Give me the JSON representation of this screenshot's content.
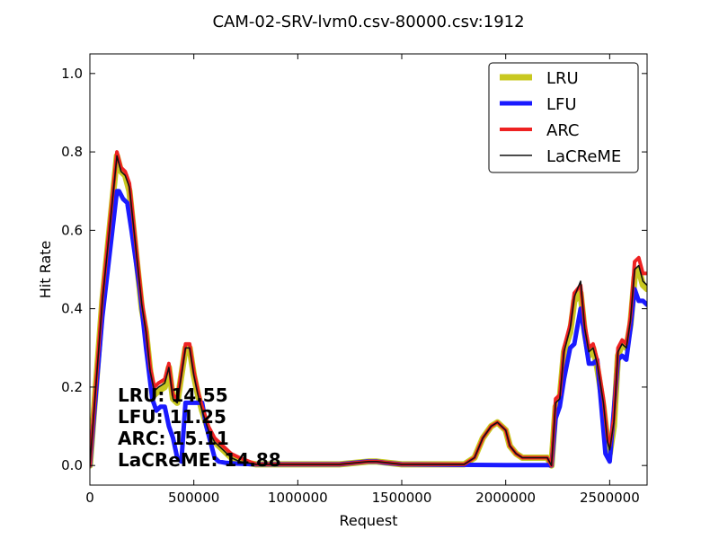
{
  "chart_data": {
    "type": "line",
    "title": "CAM-02-SRV-lvm0.csv-80000.csv:1912",
    "xlabel": "Request",
    "ylabel": "Hit Rate",
    "xlim": [
      0,
      2680000
    ],
    "ylim": [
      -0.05,
      1.05
    ],
    "xticks": [
      0,
      500000,
      1000000,
      1500000,
      2000000,
      2500000
    ],
    "xtick_labels": [
      "0",
      "500000",
      "1000000",
      "1500000",
      "2000000",
      "2500000"
    ],
    "yticks": [
      0.0,
      0.2,
      0.4,
      0.6,
      0.8,
      1.0
    ],
    "ytick_labels": [
      "0.0",
      "0.2",
      "0.4",
      "0.6",
      "0.8",
      "1.0"
    ],
    "grid": false,
    "legend_position": "top-right",
    "series": [
      {
        "name": "LRU",
        "color": "#c8c820",
        "width": 7,
        "x": [
          0,
          60000,
          130000,
          150000,
          170000,
          190000,
          220000,
          250000,
          270000,
          290000,
          310000,
          330000,
          360000,
          380000,
          400000,
          420000,
          440000,
          460000,
          480000,
          500000,
          520000,
          540000,
          570000,
          600000,
          640000,
          680000,
          720000,
          800000,
          1000000,
          1200000,
          1340000,
          1380000,
          1500000,
          1800000,
          1850000,
          1890000,
          1930000,
          1960000,
          2000000,
          2020000,
          2050000,
          2080000,
          2100000,
          2200000,
          2220000,
          2240000,
          2260000,
          2280000,
          2310000,
          2330000,
          2360000,
          2380000,
          2400000,
          2420000,
          2440000,
          2470000,
          2490000,
          2500000,
          2520000,
          2540000,
          2560000,
          2580000,
          2600000,
          2620000,
          2640000,
          2660000,
          2680000
        ],
        "values": [
          0.0,
          0.42,
          0.79,
          0.75,
          0.74,
          0.7,
          0.55,
          0.4,
          0.34,
          0.24,
          0.18,
          0.19,
          0.2,
          0.25,
          0.17,
          0.16,
          0.23,
          0.3,
          0.3,
          0.23,
          0.18,
          0.14,
          0.09,
          0.06,
          0.04,
          0.02,
          0.01,
          0.003,
          0.003,
          0.003,
          0.01,
          0.01,
          0.003,
          0.003,
          0.02,
          0.07,
          0.1,
          0.11,
          0.09,
          0.05,
          0.03,
          0.02,
          0.02,
          0.02,
          0.0,
          0.15,
          0.17,
          0.29,
          0.34,
          0.42,
          0.44,
          0.34,
          0.28,
          0.3,
          0.25,
          0.15,
          0.06,
          0.03,
          0.1,
          0.28,
          0.31,
          0.3,
          0.36,
          0.48,
          0.5,
          0.46,
          0.45
        ]
      },
      {
        "name": "LFU",
        "color": "#1a1aff",
        "width": 5,
        "x": [
          0,
          60000,
          130000,
          140000,
          160000,
          180000,
          200000,
          240000,
          270000,
          300000,
          320000,
          340000,
          360000,
          380000,
          400000,
          420000,
          440000,
          460000,
          480000,
          500000,
          520000,
          540000,
          560000,
          580000,
          600000,
          620000,
          650000,
          700000,
          800000,
          1000000,
          1200000,
          1330000,
          1380000,
          1420000,
          1500000,
          2000000,
          2200000,
          2220000,
          2240000,
          2260000,
          2280000,
          2310000,
          2330000,
          2360000,
          2380000,
          2400000,
          2420000,
          2440000,
          2460000,
          2480000,
          2500000,
          2520000,
          2540000,
          2560000,
          2580000,
          2600000,
          2620000,
          2640000,
          2660000,
          2680000
        ],
        "values": [
          0.0,
          0.38,
          0.7,
          0.7,
          0.68,
          0.67,
          0.6,
          0.45,
          0.3,
          0.17,
          0.14,
          0.15,
          0.15,
          0.1,
          0.07,
          0.02,
          0.01,
          0.16,
          0.16,
          0.16,
          0.16,
          0.16,
          0.1,
          0.06,
          0.02,
          0.01,
          0.007,
          0.005,
          0.003,
          0.003,
          0.003,
          0.01,
          0.01,
          0.007,
          0.003,
          0.001,
          0.001,
          0.0,
          0.12,
          0.15,
          0.22,
          0.3,
          0.31,
          0.4,
          0.33,
          0.26,
          0.26,
          0.27,
          0.15,
          0.03,
          0.01,
          0.14,
          0.27,
          0.28,
          0.27,
          0.35,
          0.45,
          0.42,
          0.42,
          0.41
        ]
      },
      {
        "name": "ARC",
        "color": "#ee2222",
        "width": 4,
        "x": [
          0,
          60000,
          130000,
          150000,
          170000,
          190000,
          220000,
          250000,
          270000,
          290000,
          310000,
          330000,
          360000,
          380000,
          400000,
          420000,
          440000,
          460000,
          480000,
          500000,
          520000,
          540000,
          570000,
          600000,
          640000,
          680000,
          720000,
          800000,
          1000000,
          1200000,
          1340000,
          1380000,
          1500000,
          1800000,
          1850000,
          1890000,
          1930000,
          1960000,
          2000000,
          2020000,
          2050000,
          2080000,
          2100000,
          2200000,
          2220000,
          2240000,
          2260000,
          2280000,
          2310000,
          2330000,
          2360000,
          2380000,
          2400000,
          2420000,
          2440000,
          2470000,
          2490000,
          2500000,
          2520000,
          2540000,
          2560000,
          2580000,
          2600000,
          2620000,
          2640000,
          2660000,
          2680000
        ],
        "values": [
          0.0,
          0.43,
          0.8,
          0.76,
          0.75,
          0.72,
          0.57,
          0.42,
          0.35,
          0.25,
          0.2,
          0.21,
          0.22,
          0.26,
          0.18,
          0.17,
          0.24,
          0.31,
          0.31,
          0.24,
          0.19,
          0.15,
          0.1,
          0.07,
          0.05,
          0.03,
          0.02,
          0.003,
          0.003,
          0.003,
          0.01,
          0.01,
          0.003,
          0.003,
          0.02,
          0.07,
          0.1,
          0.11,
          0.09,
          0.05,
          0.03,
          0.02,
          0.02,
          0.02,
          0.0,
          0.17,
          0.18,
          0.3,
          0.36,
          0.44,
          0.46,
          0.36,
          0.3,
          0.31,
          0.27,
          0.17,
          0.07,
          0.05,
          0.12,
          0.3,
          0.32,
          0.31,
          0.38,
          0.52,
          0.53,
          0.49,
          0.49
        ]
      },
      {
        "name": "LaCReME",
        "color": "#111111",
        "width": 1.6,
        "x": [
          0,
          60000,
          130000,
          150000,
          170000,
          190000,
          220000,
          250000,
          270000,
          290000,
          310000,
          330000,
          360000,
          380000,
          400000,
          420000,
          440000,
          460000,
          480000,
          500000,
          520000,
          540000,
          570000,
          600000,
          640000,
          680000,
          720000,
          800000,
          1000000,
          1200000,
          1340000,
          1380000,
          1500000,
          1800000,
          1850000,
          1890000,
          1930000,
          1960000,
          2000000,
          2020000,
          2050000,
          2080000,
          2100000,
          2200000,
          2220000,
          2240000,
          2260000,
          2280000,
          2310000,
          2330000,
          2360000,
          2380000,
          2400000,
          2420000,
          2440000,
          2470000,
          2490000,
          2500000,
          2520000,
          2540000,
          2560000,
          2580000,
          2600000,
          2620000,
          2640000,
          2660000,
          2680000
        ],
        "values": [
          0.0,
          0.42,
          0.79,
          0.75,
          0.74,
          0.71,
          0.56,
          0.41,
          0.34,
          0.24,
          0.19,
          0.2,
          0.21,
          0.25,
          0.17,
          0.16,
          0.23,
          0.3,
          0.3,
          0.23,
          0.18,
          0.14,
          0.09,
          0.06,
          0.04,
          0.02,
          0.01,
          0.003,
          0.003,
          0.003,
          0.01,
          0.01,
          0.003,
          0.003,
          0.02,
          0.07,
          0.1,
          0.11,
          0.09,
          0.05,
          0.03,
          0.02,
          0.02,
          0.02,
          0.0,
          0.16,
          0.17,
          0.29,
          0.35,
          0.43,
          0.47,
          0.35,
          0.29,
          0.3,
          0.26,
          0.16,
          0.06,
          0.04,
          0.11,
          0.29,
          0.31,
          0.3,
          0.37,
          0.5,
          0.51,
          0.47,
          0.46
        ]
      }
    ],
    "annotations": [
      "LRU:  14.55",
      "LFU:  11.25",
      "ARC:  15.11",
      "LaCReME:  14.88"
    ]
  }
}
